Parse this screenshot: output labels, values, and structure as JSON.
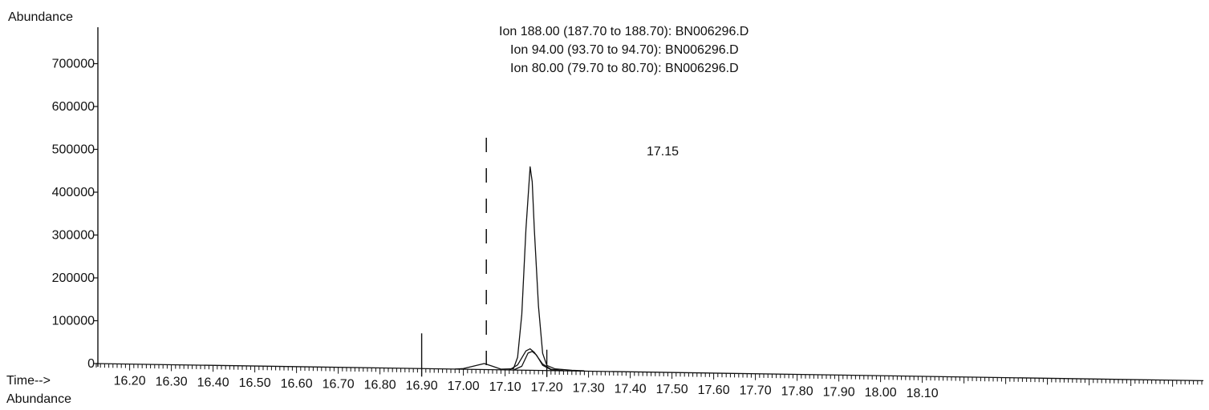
{
  "chart_data": {
    "type": "line",
    "title_lines": [
      "Ion 188.00 (187.70 to 188.70): BN006296.D",
      "Ion  94.00 (93.70 to 94.70): BN006296.D",
      "Ion  80.00 (79.70 to 80.70): BN006296.D"
    ],
    "ylabel": "Abundance",
    "xlabel": "Time-->",
    "bottom_label": "Abundance",
    "ylim": [
      0,
      750000
    ],
    "xlim": [
      16.12,
      18.15
    ],
    "y_ticks": [
      "0",
      "100000",
      "200000",
      "300000",
      "400000",
      "500000",
      "600000",
      "700000"
    ],
    "x_ticks": [
      "16.20",
      "16.30",
      "16.40",
      "16.50",
      "16.60",
      "16.70",
      "16.80",
      "16.90",
      "17.00",
      "17.10",
      "17.20",
      "17.30",
      "17.40",
      "17.50",
      "17.60",
      "17.70",
      "17.80",
      "17.90",
      "18.00",
      "18.10"
    ],
    "peak_label": "17.15",
    "series": [
      {
        "points": [
          [
            16.98,
            0
          ],
          [
            17.0,
            1500
          ],
          [
            17.03,
            9000
          ],
          [
            17.05,
            14000
          ],
          [
            17.07,
            8000
          ],
          [
            17.09,
            1500
          ],
          [
            17.12,
            3000
          ],
          [
            17.13,
            30000
          ],
          [
            17.14,
            130000
          ],
          [
            17.15,
            330000
          ],
          [
            17.16,
            475000
          ],
          [
            17.165,
            440000
          ],
          [
            17.17,
            330000
          ],
          [
            17.18,
            150000
          ],
          [
            17.19,
            40000
          ],
          [
            17.2,
            12000
          ],
          [
            17.22,
            4000
          ],
          [
            17.26,
            1500
          ],
          [
            17.29,
            800
          ]
        ]
      },
      {
        "points": [
          [
            17.11,
            0
          ],
          [
            17.13,
            12000
          ],
          [
            17.15,
            45000
          ],
          [
            17.16,
            50000
          ],
          [
            17.17,
            42000
          ],
          [
            17.19,
            15000
          ],
          [
            17.21,
            3000
          ],
          [
            17.23,
            800
          ]
        ]
      },
      {
        "points": [
          [
            17.12,
            0
          ],
          [
            17.14,
            9000
          ],
          [
            17.155,
            40000
          ],
          [
            17.165,
            44000
          ],
          [
            17.175,
            36000
          ],
          [
            17.19,
            12000
          ],
          [
            17.21,
            2000
          ],
          [
            17.24,
            500
          ]
        ]
      }
    ],
    "marker_verticals": [
      16.9,
      17.055,
      17.2
    ]
  }
}
